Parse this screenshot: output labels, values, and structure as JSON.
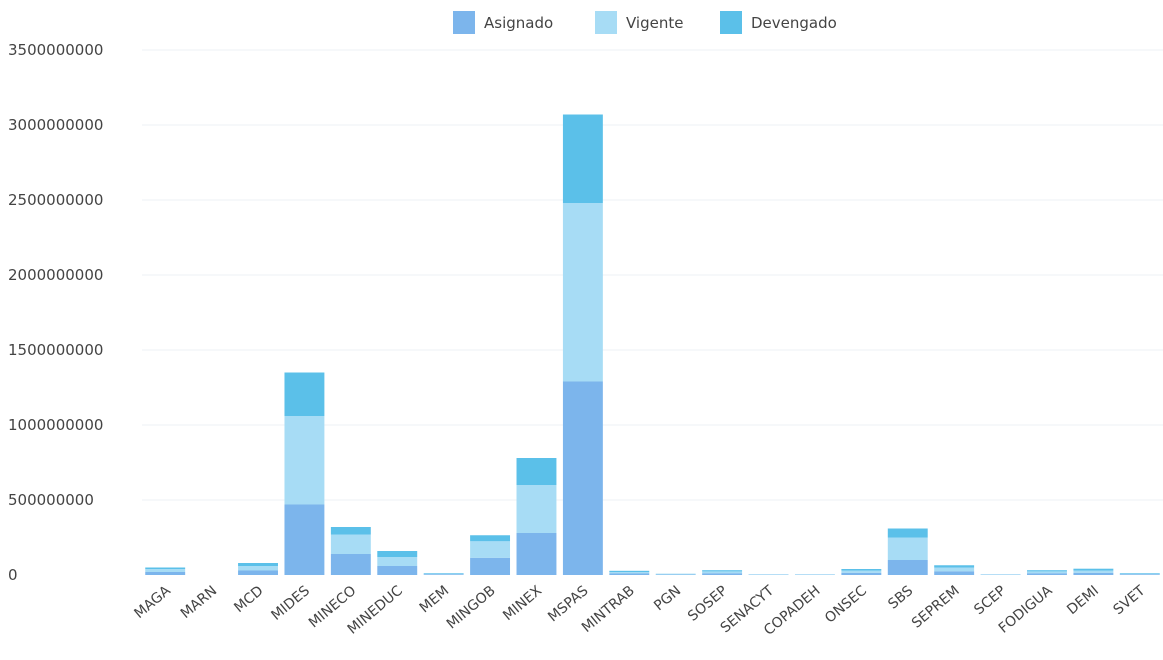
{
  "chart_data": {
    "type": "bar",
    "stacked": true,
    "legend": "top-center",
    "grid": true,
    "ylim": [
      0,
      3500000000
    ],
    "yticks": [
      0,
      500000000,
      1000000000,
      1500000000,
      2000000000,
      2500000000,
      3000000000,
      3500000000
    ],
    "ytick_labels": [
      "0",
      "500000000",
      "1000000000",
      "1500000000",
      "2000000000",
      "2500000000",
      "3000000000",
      "3500000000"
    ],
    "categories": [
      "MAGA",
      "MARN",
      "MCD",
      "MIDES",
      "MINECO",
      "MINEDUC",
      "MEM",
      "MINGOB",
      "MINEX",
      "MSPAS",
      "MINTRAB",
      "PGN",
      "SOSEP",
      "SENACYT",
      "COPADEH",
      "ONSEC",
      "SBS",
      "SEPREM",
      "SCEP",
      "FODIGUA",
      "DEMI",
      "SVET"
    ],
    "series": [
      {
        "name": "Asignado",
        "color": "#7cb5ec",
        "values": [
          20000000,
          0,
          30000000,
          470000000,
          140000000,
          60000000,
          5000000,
          115000000,
          280000000,
          1290000000,
          10000000,
          3000000,
          12000000,
          2000000,
          2000000,
          15000000,
          100000000,
          25000000,
          2000000,
          12000000,
          15000000,
          5000000
        ]
      },
      {
        "name": "Vigente",
        "color": "#a7dcf5",
        "values": [
          20000000,
          0,
          30000000,
          590000000,
          130000000,
          60000000,
          5000000,
          110000000,
          320000000,
          1190000000,
          10000000,
          3000000,
          12000000,
          2000000,
          2000000,
          15000000,
          150000000,
          25000000,
          2000000,
          12000000,
          15000000,
          5000000
        ]
      },
      {
        "name": "Devengado",
        "color": "#5bc0e9",
        "values": [
          10000000,
          0,
          20000000,
          290000000,
          50000000,
          40000000,
          3000000,
          40000000,
          180000000,
          590000000,
          8000000,
          2000000,
          8000000,
          1000000,
          1000000,
          10000000,
          60000000,
          15000000,
          1000000,
          8000000,
          12000000,
          3000000
        ]
      }
    ]
  }
}
